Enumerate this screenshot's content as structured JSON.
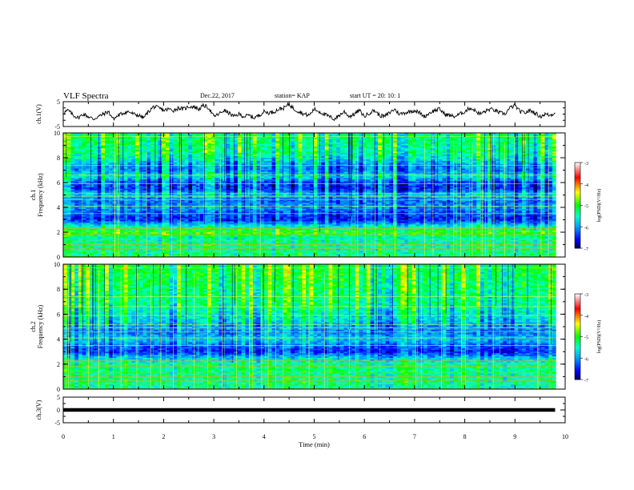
{
  "header": {
    "title": "VLF Spectra",
    "date": "Dec.22, 2017",
    "station": "station= KAP",
    "start": "start UT =  20: 10: 1"
  },
  "colorbar": {
    "label": "log(PSD)(V²/Hz)",
    "ticks": [
      "-3",
      "-4",
      "-5",
      "-6",
      "-7"
    ],
    "colors": [
      "#ffffff",
      "#ff0000",
      "#ffff00",
      "#00ff00",
      "#00ffff",
      "#0000ff",
      "#000060"
    ]
  },
  "chart_data": [
    {
      "type": "line",
      "panel": "ch1-waveform",
      "ylabel": "ch.1(V)",
      "ylim": [
        -5,
        5
      ],
      "yticks": [
        "5",
        "-5"
      ],
      "xlim": [
        0,
        10
      ],
      "series": [
        {
          "x": [
            0,
            0.1,
            0.2,
            0.3,
            0.4,
            0.5,
            0.6,
            0.7,
            0.8,
            0.9,
            1.0,
            1.1,
            1.2,
            1.3,
            1.4,
            1.5,
            1.6,
            1.7,
            1.8,
            1.9,
            2.0,
            2.1,
            2.2,
            2.3,
            2.4,
            2.5,
            2.6,
            2.7,
            2.8,
            2.9,
            3.0,
            3.1,
            3.2,
            3.3,
            3.4,
            3.5,
            3.6,
            3.7,
            3.8,
            3.9,
            4.0,
            4.1,
            4.2,
            4.3,
            4.4,
            4.5,
            4.6,
            4.7,
            4.8,
            4.9,
            5.0,
            5.1,
            5.2,
            5.3,
            5.4,
            5.5,
            5.6,
            5.7,
            5.8,
            5.9,
            6.0,
            6.1,
            6.2,
            6.3,
            6.4,
            6.5,
            6.6,
            6.7,
            6.8,
            6.9,
            7.0,
            7.1,
            7.2,
            7.3,
            7.4,
            7.5,
            7.6,
            7.7,
            7.8,
            7.9,
            8.0,
            8.1,
            8.2,
            8.3,
            8.4,
            8.5,
            8.6,
            8.7,
            8.8,
            8.9,
            9.0,
            9.1,
            9.2,
            9.3,
            9.4,
            9.5,
            9.6,
            9.7,
            9.8
          ],
          "y": [
            0.5,
            1.5,
            -0.5,
            -1.5,
            0,
            -1,
            -2,
            -1,
            0,
            1,
            -2,
            -0.5,
            0.5,
            1,
            0,
            -0.5,
            -1.5,
            1,
            3,
            2.5,
            1.5,
            2,
            1.5,
            2.5,
            2,
            3,
            3,
            2,
            3.5,
            2.5,
            -1,
            0,
            1.5,
            0.5,
            -1,
            0,
            -1,
            -0.5,
            -1.5,
            -0.5,
            1,
            0.5,
            1,
            2,
            2.5,
            4,
            2,
            1,
            0,
            -0.5,
            2,
            1,
            0,
            -1,
            -2,
            -0.5,
            1,
            -1,
            0,
            1.5,
            -1,
            0.5,
            1.5,
            -0.5,
            -1,
            0.5,
            2,
            0,
            0.5,
            1,
            1.5,
            0.5,
            -1,
            0.5,
            1.5,
            2,
            0,
            -0.5,
            -1,
            0,
            1,
            2.5,
            1.5,
            0,
            1,
            2,
            1.5,
            0.5,
            0,
            2.5,
            3.5,
            1,
            0.5,
            1.5,
            0.5,
            -1,
            0,
            -0.5,
            0.5
          ]
        }
      ]
    },
    {
      "type": "heatmap",
      "panel": "ch1-spectrogram",
      "ylabel": "ch.1\nFrequency (kHz)",
      "ylim": [
        0,
        10
      ],
      "yticks": [
        "0",
        "2",
        "4",
        "6",
        "8",
        "10"
      ],
      "xlim": [
        0,
        10
      ],
      "profile_kHz": [
        0,
        0.5,
        1,
        1.5,
        2,
        2.5,
        3,
        3.5,
        4,
        4.5,
        5,
        5.5,
        6,
        6.5,
        7,
        7.5,
        8,
        8.5,
        9,
        9.5,
        10
      ],
      "log_psd_profile": [
        -5.2,
        -5.4,
        -5.3,
        -5.5,
        -4.9,
        -5.6,
        -6.5,
        -6.3,
        -6.0,
        -6.2,
        -5.8,
        -6.4,
        -6.3,
        -5.6,
        -6.1,
        -5.9,
        -5.5,
        -5.3,
        -5.3,
        -5.2,
        -5.3
      ]
    },
    {
      "type": "heatmap",
      "panel": "ch2-spectrogram",
      "ylabel": "ch.2\nFrequency (kHz)",
      "ylim": [
        0,
        10
      ],
      "yticks": [
        "0",
        "2",
        "4",
        "6",
        "8",
        "10"
      ],
      "xlim": [
        0,
        10
      ],
      "profile_kHz": [
        0,
        0.5,
        1,
        1.5,
        2,
        2.5,
        3,
        3.5,
        4,
        4.5,
        5,
        5.5,
        6,
        6.5,
        7,
        7.5,
        8,
        8.5,
        9,
        9.5,
        10
      ],
      "log_psd_profile": [
        -5.5,
        -5.3,
        -5.4,
        -5.3,
        -5.4,
        -5.8,
        -6.5,
        -6.2,
        -5.8,
        -6.1,
        -6.0,
        -5.7,
        -5.6,
        -5.4,
        -5.3,
        -5.3,
        -5.2,
        -5.2,
        -5.1,
        -5.1,
        -5.1
      ]
    },
    {
      "type": "line",
      "panel": "ch3-waveform",
      "ylabel": "ch.3(V)",
      "ylim": [
        -5,
        5
      ],
      "yticks": [
        "5",
        "0",
        "-5"
      ],
      "xlim": [
        0,
        10
      ],
      "xlabel": "Time (min)",
      "xticks": [
        "0",
        "1",
        "2",
        "3",
        "4",
        "5",
        "6",
        "7",
        "8",
        "9",
        "10"
      ],
      "series": [
        {
          "x": [
            0,
            9.8
          ],
          "y": [
            0,
            0
          ]
        }
      ]
    }
  ]
}
